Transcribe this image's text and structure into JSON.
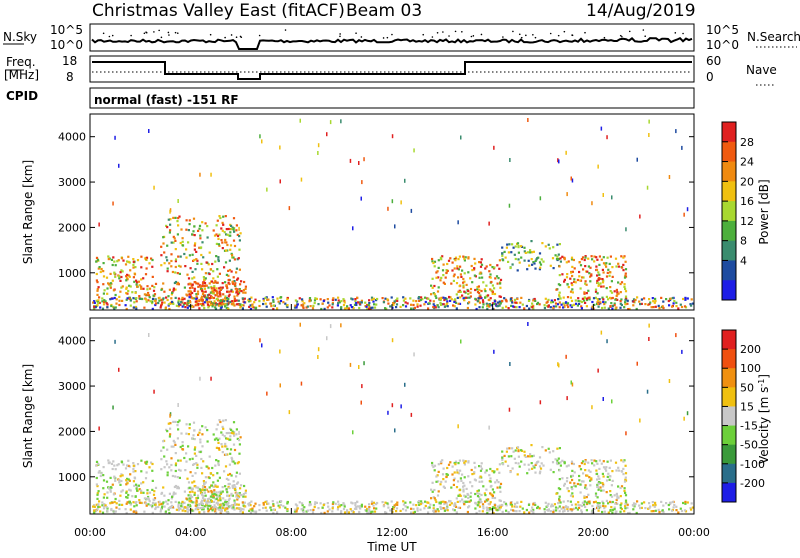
{
  "header": {
    "title": "Christmas Valley East (fitACF)",
    "beam": "Beam 03",
    "date": "14/Aug/2019"
  },
  "strip": {
    "nsky_label": "N.Sky",
    "nsky_ticks": [
      "10^5",
      "10^0"
    ],
    "nsearch_label": "N.Search",
    "nsearch_ticks": [
      "10^5",
      "10^0"
    ],
    "freq_label_1": "Freq.",
    "freq_label_2": "[MHz]",
    "freq_ticks": [
      "18",
      "8"
    ],
    "nave_label": "Nave",
    "nave_ticks": [
      "60",
      "0"
    ],
    "cpid_label": "CPID",
    "cpid_value": "normal (fast) -151 RF"
  },
  "colors": {
    "power_scale": [
      "#1e1ee6",
      "#1e4ba0",
      "#3a8c6e",
      "#4caf3c",
      "#a8d830",
      "#f0c010",
      "#f08a10",
      "#f05a10",
      "#e02020"
    ],
    "velocity_scale": [
      "#1e1ee6",
      "#2a6e8a",
      "#3a9a3a",
      "#6cd03a",
      "#c8c8c8",
      "#f0c010",
      "#f09010",
      "#f05010",
      "#e02020"
    ]
  },
  "chart_data": [
    {
      "type": "heatmap",
      "panel": "power",
      "xlabel": "",
      "ylabel": "Slant Range [km]",
      "ylim": [
        180,
        4500
      ],
      "y_ticks": [
        "4000",
        "3000",
        "2000",
        "1000"
      ],
      "y_tick_values": [
        4000,
        3000,
        2000,
        1000
      ],
      "colorbar_label": "Power [dB]",
      "colorbar_ticks": [
        "28",
        "24",
        "20",
        "16",
        "12",
        "8",
        "4"
      ],
      "colorbar_range": [
        0,
        32
      ]
    },
    {
      "type": "heatmap",
      "panel": "velocity",
      "xlabel": "Time UT",
      "ylabel": "Slant Range [km]",
      "ylim": [
        180,
        4500
      ],
      "y_ticks": [
        "4000",
        "3000",
        "2000",
        "1000"
      ],
      "y_tick_values": [
        4000,
        3000,
        2000,
        1000
      ],
      "x_ticks": [
        "00:00",
        "04:00",
        "08:00",
        "12:00",
        "16:00",
        "20:00",
        "00:00"
      ],
      "colorbar_label": "Velocity [m s",
      "colorbar_label_sup": "-1",
      "colorbar_label_end": "]",
      "colorbar_ticks": [
        "200",
        "100",
        "50",
        "15",
        "-15",
        "-50",
        "-100",
        "-200"
      ]
    }
  ]
}
